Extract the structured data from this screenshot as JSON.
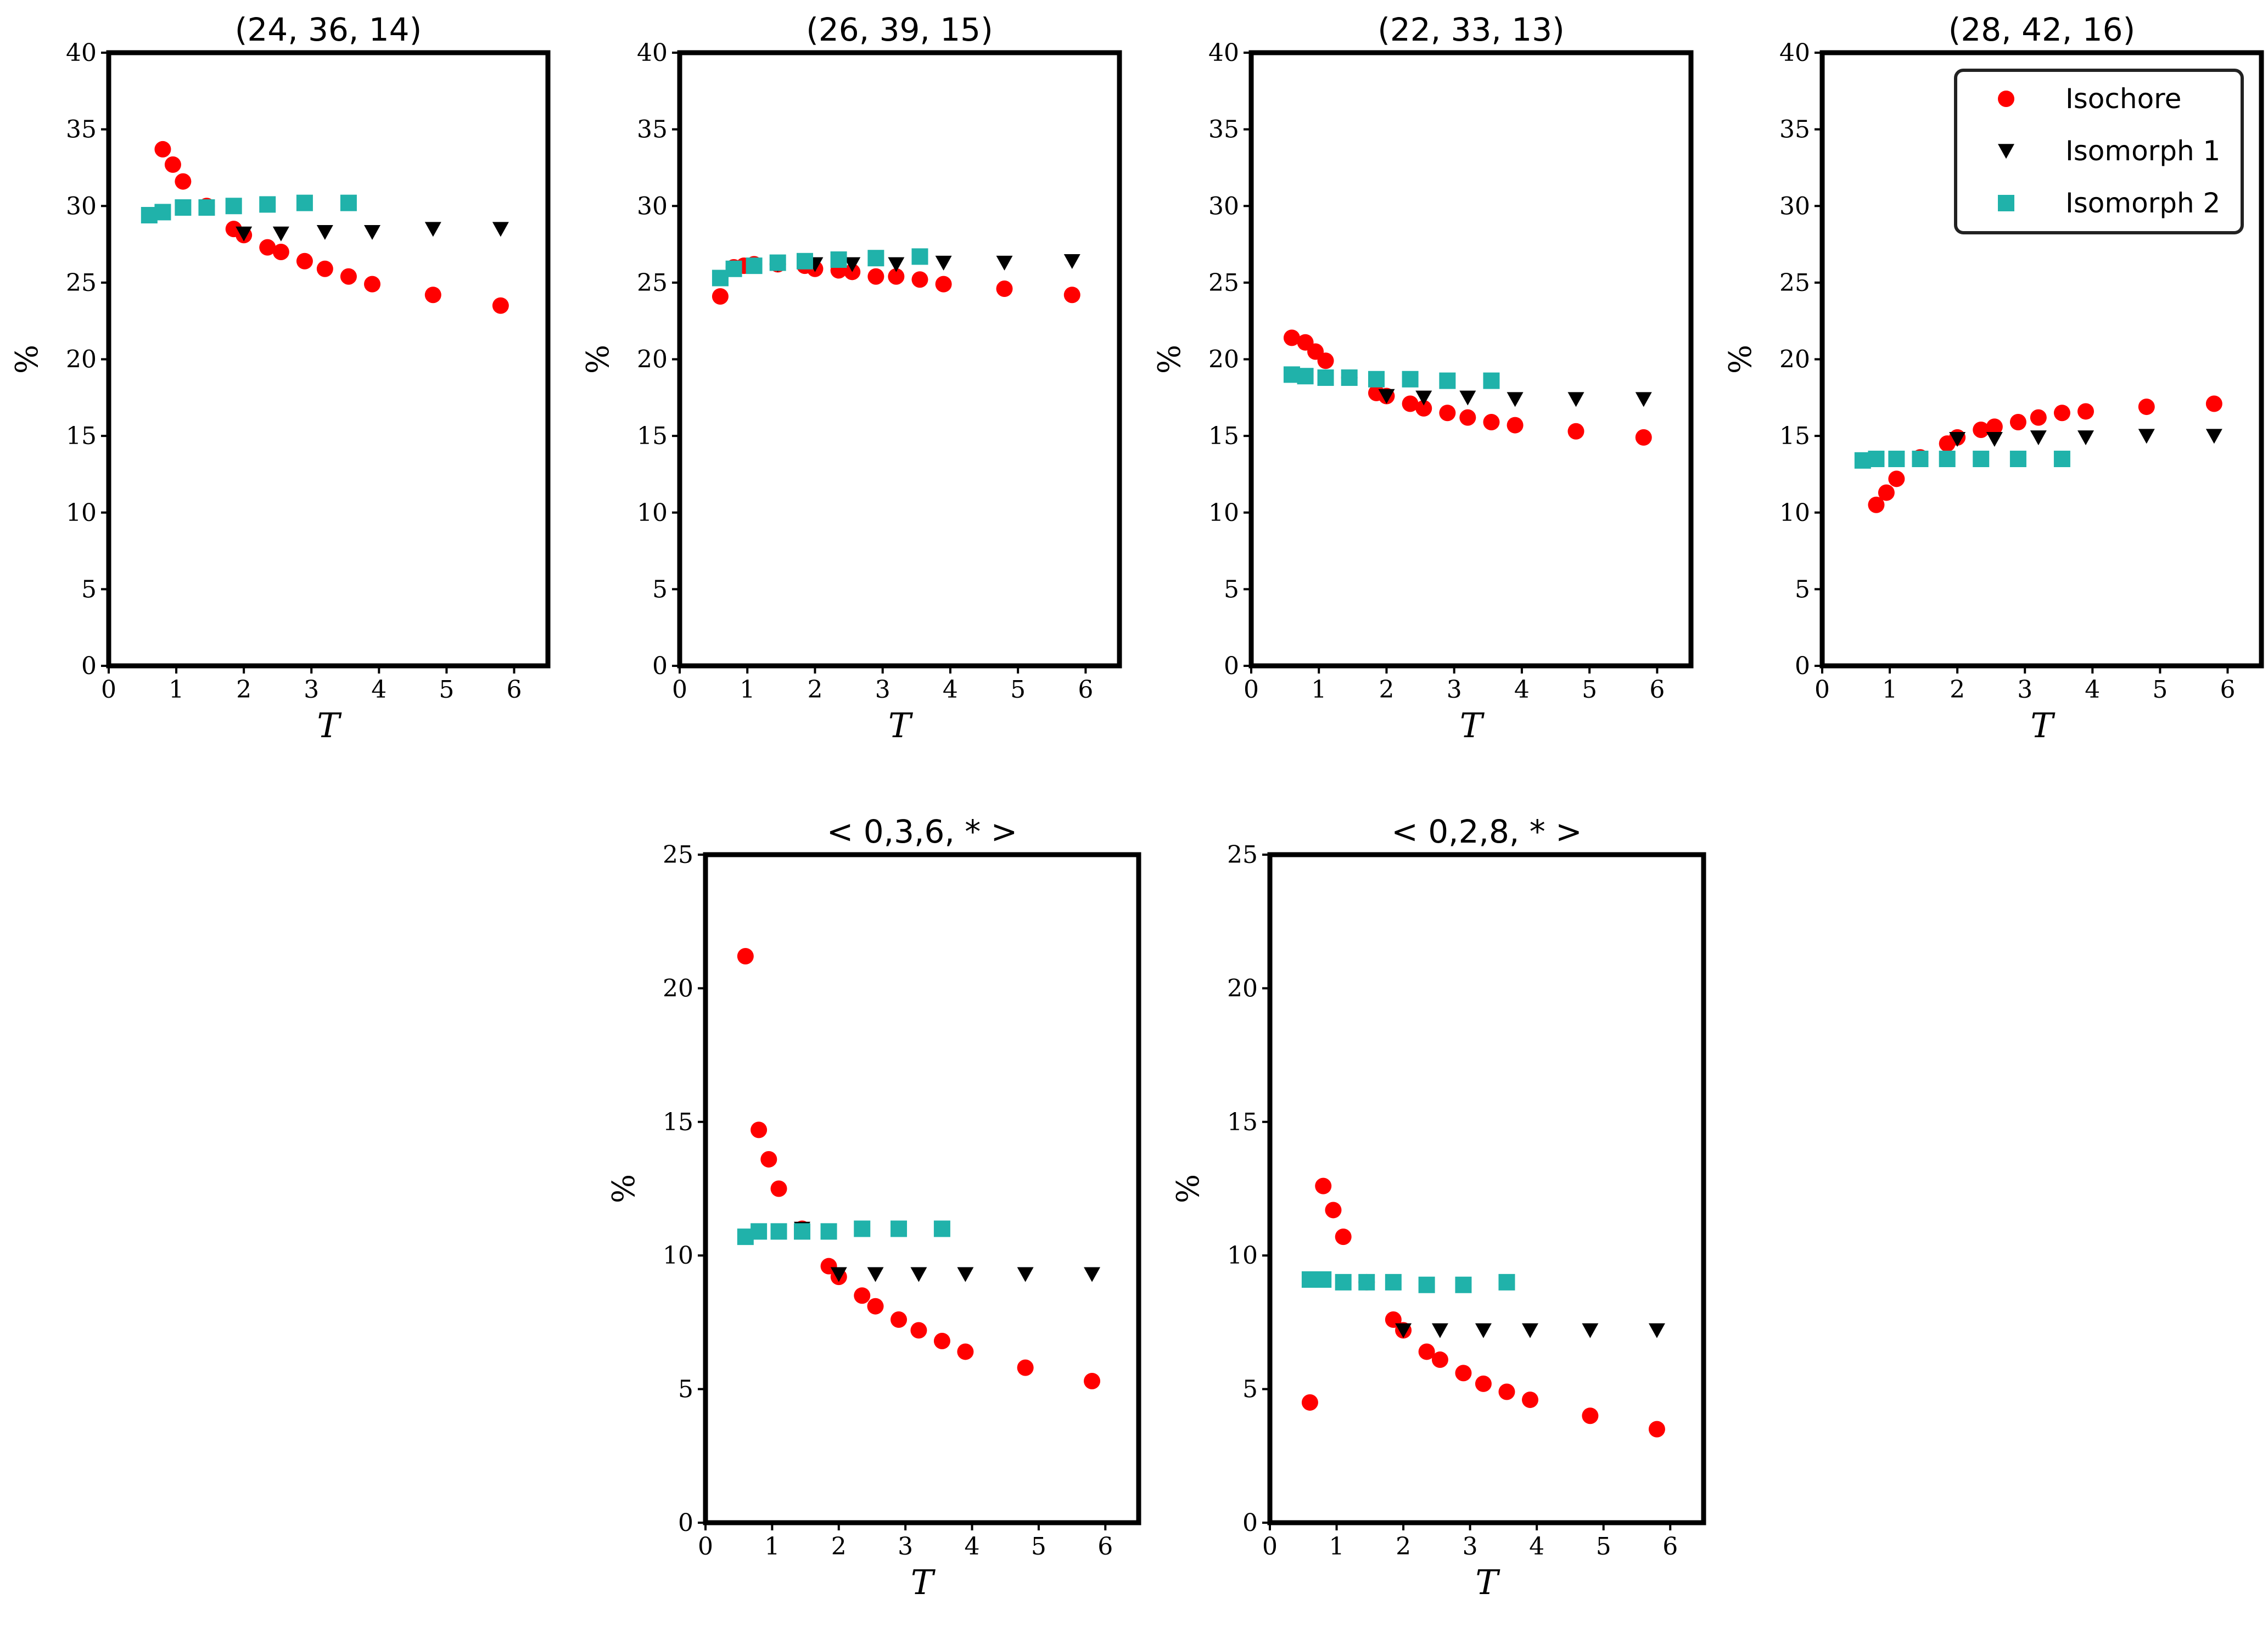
{
  "colors": {
    "isochore": "#ff0000",
    "isomorph1": "#000000",
    "isomorph2": "#20b2aa"
  },
  "legend": {
    "location": "upper right of the fourth top panel",
    "entries": [
      {
        "series": "Isochore",
        "label": "Isochore",
        "marker": "circle"
      },
      {
        "series": "Isomorph 1",
        "label": "Isomorph 1",
        "marker": "triangle-down"
      },
      {
        "series": "Isomorph 2",
        "label": "Isomorph 2",
        "marker": "square"
      }
    ]
  },
  "chart_data": [
    {
      "type": "scatter",
      "title": "(24, 36, 14)",
      "xlabel": "T",
      "ylabel": "%",
      "xlim": [
        0,
        6.5
      ],
      "ylim": [
        0,
        40
      ],
      "xticks": [
        0,
        1,
        2,
        3,
        4,
        5,
        6
      ],
      "yticks": [
        0,
        5,
        10,
        15,
        20,
        25,
        30,
        35,
        40
      ],
      "series": [
        {
          "name": "Isochore",
          "x": [
            0.8,
            0.95,
            1.1,
            1.45,
            1.85,
            2.0,
            2.35,
            2.55,
            2.9,
            3.2,
            3.55,
            3.9,
            4.8,
            5.8
          ],
          "y": [
            33.7,
            32.7,
            31.6,
            30.0,
            28.5,
            28.1,
            27.3,
            27.0,
            26.4,
            25.9,
            25.4,
            24.9,
            24.2,
            23.5
          ]
        },
        {
          "name": "Isomorph 1",
          "x": [
            1.45,
            2.0,
            2.55,
            3.2,
            3.9,
            4.8,
            5.8
          ],
          "y": [
            29.9,
            28.2,
            28.2,
            28.3,
            28.3,
            28.5,
            28.5
          ]
        },
        {
          "name": "Isomorph 2",
          "x": [
            0.6,
            0.8,
            1.1,
            1.45,
            1.85,
            2.35,
            2.9,
            3.55
          ],
          "y": [
            29.4,
            29.6,
            29.9,
            29.9,
            30.0,
            30.1,
            30.2,
            30.2
          ]
        }
      ]
    },
    {
      "type": "scatter",
      "title": "(26, 39, 15)",
      "xlabel": "T",
      "ylabel": "%",
      "xlim": [
        0,
        6.5
      ],
      "ylim": [
        0,
        40
      ],
      "xticks": [
        0,
        1,
        2,
        3,
        4,
        5,
        6
      ],
      "yticks": [
        0,
        5,
        10,
        15,
        20,
        25,
        30,
        35,
        40
      ],
      "series": [
        {
          "name": "Isochore",
          "x": [
            0.6,
            0.8,
            0.95,
            1.1,
            1.45,
            1.85,
            2.0,
            2.35,
            2.55,
            2.9,
            3.2,
            3.55,
            3.9,
            4.8,
            5.8
          ],
          "y": [
            24.1,
            26.0,
            26.1,
            26.2,
            26.2,
            26.1,
            25.9,
            25.8,
            25.7,
            25.4,
            25.4,
            25.2,
            24.9,
            24.6,
            24.2
          ]
        },
        {
          "name": "Isomorph 1",
          "x": [
            1.45,
            2.0,
            2.55,
            3.2,
            3.9,
            4.8,
            5.8
          ],
          "y": [
            26.2,
            26.2,
            26.2,
            26.2,
            26.3,
            26.3,
            26.4
          ]
        },
        {
          "name": "Isomorph 2",
          "x": [
            0.6,
            0.8,
            1.1,
            1.45,
            1.85,
            2.35,
            2.9,
            3.55
          ],
          "y": [
            25.3,
            25.9,
            26.1,
            26.3,
            26.4,
            26.5,
            26.6,
            26.7
          ]
        }
      ]
    },
    {
      "type": "scatter",
      "title": "(22, 33, 13)",
      "xlabel": "T",
      "ylabel": "%",
      "xlim": [
        0,
        6.5
      ],
      "ylim": [
        0,
        40
      ],
      "xticks": [
        0,
        1,
        2,
        3,
        4,
        5,
        6
      ],
      "yticks": [
        0,
        5,
        10,
        15,
        20,
        25,
        30,
        35,
        40
      ],
      "series": [
        {
          "name": "Isochore",
          "x": [
            0.6,
            0.8,
            0.95,
            1.1,
            1.45,
            1.85,
            2.0,
            2.35,
            2.55,
            2.9,
            3.2,
            3.55,
            3.9,
            4.8,
            5.8
          ],
          "y": [
            21.4,
            21.1,
            20.5,
            19.9,
            18.8,
            17.8,
            17.6,
            17.1,
            16.8,
            16.5,
            16.2,
            15.9,
            15.7,
            15.3,
            14.9
          ]
        },
        {
          "name": "Isomorph 1",
          "x": [
            1.45,
            2.0,
            2.55,
            3.2,
            3.9,
            4.8,
            5.8
          ],
          "y": [
            18.8,
            17.6,
            17.5,
            17.5,
            17.4,
            17.4,
            17.4
          ]
        },
        {
          "name": "Isomorph 2",
          "x": [
            0.6,
            0.8,
            1.1,
            1.45,
            1.85,
            2.35,
            2.9,
            3.55
          ],
          "y": [
            19.0,
            18.9,
            18.8,
            18.8,
            18.7,
            18.7,
            18.6,
            18.6
          ]
        }
      ]
    },
    {
      "type": "scatter",
      "title": "(28, 42, 16)",
      "xlabel": "T",
      "ylabel": "%",
      "xlim": [
        0,
        6.5
      ],
      "ylim": [
        0,
        40
      ],
      "xticks": [
        0,
        1,
        2,
        3,
        4,
        5,
        6
      ],
      "yticks": [
        0,
        5,
        10,
        15,
        20,
        25,
        30,
        35,
        40
      ],
      "series": [
        {
          "name": "Isochore",
          "x": [
            0.8,
            0.95,
            1.1,
            1.45,
            1.85,
            2.0,
            2.35,
            2.55,
            2.9,
            3.2,
            3.55,
            3.9,
            4.8,
            5.8
          ],
          "y": [
            10.5,
            11.3,
            12.2,
            13.6,
            14.5,
            14.9,
            15.4,
            15.6,
            15.9,
            16.2,
            16.5,
            16.6,
            16.9,
            17.1
          ]
        },
        {
          "name": "Isomorph 1",
          "x": [
            1.45,
            2.0,
            2.55,
            3.2,
            3.9,
            4.8,
            5.8
          ],
          "y": [
            13.5,
            14.8,
            14.8,
            14.9,
            14.9,
            15.0,
            15.0
          ]
        },
        {
          "name": "Isomorph 2",
          "x": [
            0.6,
            0.8,
            1.1,
            1.45,
            1.85,
            2.35,
            2.9,
            3.55
          ],
          "y": [
            13.4,
            13.5,
            13.5,
            13.5,
            13.5,
            13.5,
            13.5,
            13.5
          ]
        }
      ]
    },
    {
      "type": "scatter",
      "title": "< 0,3,6, * >",
      "xlabel": "T",
      "ylabel": "%",
      "xlim": [
        0,
        6.5
      ],
      "ylim": [
        0,
        25
      ],
      "xticks": [
        0,
        1,
        2,
        3,
        4,
        5,
        6
      ],
      "yticks": [
        0,
        5,
        10,
        15,
        20,
        25
      ],
      "series": [
        {
          "name": "Isochore",
          "x": [
            0.6,
            0.8,
            0.95,
            1.1,
            1.45,
            1.85,
            2.0,
            2.35,
            2.55,
            2.9,
            3.2,
            3.55,
            3.9,
            4.8,
            5.8
          ],
          "y": [
            21.2,
            14.7,
            13.6,
            12.5,
            11.0,
            9.6,
            9.2,
            8.5,
            8.1,
            7.6,
            7.2,
            6.8,
            6.4,
            5.8,
            5.3
          ]
        },
        {
          "name": "Isomorph 1",
          "x": [
            1.45,
            2.0,
            2.55,
            3.2,
            3.9,
            4.8,
            5.8
          ],
          "y": [
            11.0,
            9.3,
            9.3,
            9.3,
            9.3,
            9.3,
            9.3
          ]
        },
        {
          "name": "Isomorph 2",
          "x": [
            0.6,
            0.8,
            1.1,
            1.45,
            1.85,
            2.35,
            2.9,
            3.55
          ],
          "y": [
            10.7,
            10.9,
            10.9,
            10.9,
            10.9,
            11.0,
            11.0,
            11.0
          ]
        }
      ]
    },
    {
      "type": "scatter",
      "title": "< 0,2,8, * >",
      "xlabel": "T",
      "ylabel": "%",
      "xlim": [
        0,
        6.5
      ],
      "ylim": [
        0,
        25
      ],
      "xticks": [
        0,
        1,
        2,
        3,
        4,
        5,
        6
      ],
      "yticks": [
        0,
        5,
        10,
        15,
        20,
        25
      ],
      "series": [
        {
          "name": "Isochore",
          "x": [
            0.6,
            0.8,
            0.95,
            1.1,
            1.45,
            1.85,
            2.0,
            2.35,
            2.55,
            2.9,
            3.2,
            3.55,
            3.9,
            4.8,
            5.8
          ],
          "y": [
            4.5,
            12.6,
            11.7,
            10.7,
            9.0,
            7.6,
            7.2,
            6.4,
            6.1,
            5.6,
            5.2,
            4.9,
            4.6,
            4.0,
            3.5
          ]
        },
        {
          "name": "Isomorph 1",
          "x": [
            1.45,
            2.0,
            2.55,
            3.2,
            3.9,
            4.8,
            5.8
          ],
          "y": [
            9.0,
            7.2,
            7.2,
            7.2,
            7.2,
            7.2,
            7.2
          ]
        },
        {
          "name": "Isomorph 2",
          "x": [
            0.6,
            0.8,
            1.1,
            1.45,
            1.85,
            2.35,
            2.9,
            3.55
          ],
          "y": [
            9.1,
            9.1,
            9.0,
            9.0,
            9.0,
            8.9,
            8.9,
            9.0
          ]
        }
      ]
    }
  ]
}
